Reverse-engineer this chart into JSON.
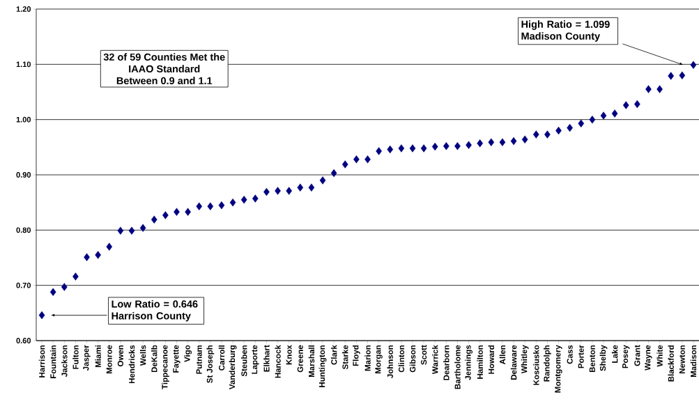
{
  "chart_data": {
    "type": "scatter",
    "categories": [
      "Harrison",
      "Fountain",
      "Jackson",
      "Fulton",
      "Jasper",
      "Miami",
      "Monroe",
      "Owen",
      "Hendricks",
      "Wells",
      "DeKalb",
      "Tippecanoe",
      "Fayette",
      "Vigo",
      "Putnam",
      "St Joseph",
      "Carroll",
      "Vanderburg",
      "Steuben",
      "Laporte",
      "Elkhart",
      "Hancock",
      "Knox",
      "Greene",
      "Marshall",
      "Huntington",
      "Clark",
      "Starke",
      "Floyd",
      "Marion",
      "Morgan",
      "Johnson",
      "Clinton",
      "Gibson",
      "Scott",
      "Warrick",
      "Dearborn",
      "Bartholome",
      "Jennings",
      "Hamilton",
      "Howard",
      "Allen",
      "Delaware",
      "Whitley",
      "Kosciusko",
      "Randolph",
      "Montgomery",
      "Cass",
      "Porter",
      "Benton",
      "Shelby",
      "Lake",
      "Posey",
      "Grant",
      "Wayne",
      "White",
      "Blackford",
      "Newton",
      "Madison"
    ],
    "values": [
      0.646,
      0.688,
      0.697,
      0.716,
      0.751,
      0.755,
      0.77,
      0.799,
      0.799,
      0.804,
      0.819,
      0.827,
      0.833,
      0.833,
      0.843,
      0.843,
      0.845,
      0.85,
      0.855,
      0.857,
      0.869,
      0.871,
      0.871,
      0.877,
      0.877,
      0.89,
      0.903,
      0.919,
      0.928,
      0.928,
      0.943,
      0.946,
      0.948,
      0.948,
      0.948,
      0.951,
      0.952,
      0.952,
      0.954,
      0.957,
      0.959,
      0.959,
      0.961,
      0.964,
      0.973,
      0.973,
      0.98,
      0.985,
      0.993,
      1.0,
      1.007,
      1.011,
      1.026,
      1.028,
      1.055,
      1.055,
      1.079,
      1.08,
      1.099
    ],
    "color": "#000080",
    "marker": "diamond",
    "grid": "y",
    "ylim": [
      0.6,
      1.2
    ],
    "yticks": [
      {
        "value": 0.6,
        "label": "0.60"
      },
      {
        "value": 0.7,
        "label": "0.70"
      },
      {
        "value": 0.8,
        "label": "0.80"
      },
      {
        "value": 0.9,
        "label": "0.90"
      },
      {
        "value": 1.0,
        "label": "1.00"
      },
      {
        "value": 1.1,
        "label": "1.10"
      },
      {
        "value": 1.2,
        "label": "1.20"
      }
    ],
    "annotations": [
      "Low Ratio = 0.646 Harrison County",
      "High Ratio = 1.099 Madison County",
      "32 of 59 Counties Met the",
      "IAAO Standard",
      "Between 0.9 and 1.1"
    ]
  }
}
